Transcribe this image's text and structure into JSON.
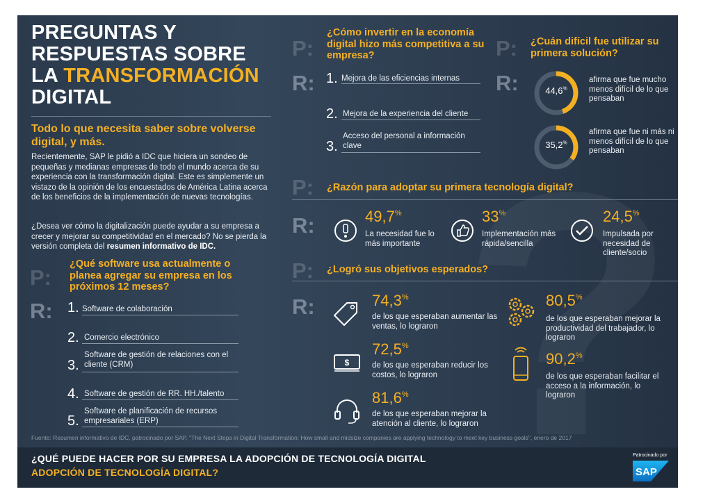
{
  "colors": {
    "accent": "#f4b023",
    "background": "#2f3f52",
    "footer": "#1e2a38",
    "sap_blue": "#1a8fd6"
  },
  "header": {
    "title_line1": "PREGUNTAS Y",
    "title_line2": "RESPUESTAS SOBRE",
    "title_line3a": "LA ",
    "title_line3b": "TRANSFORMACIÓN",
    "title_line4": "DIGITAL",
    "subtitle": "Todo lo que necesita saber sobre volverse digital, y más."
  },
  "intro": {
    "p1": "Recientemente, SAP le pidió a IDC que hiciera un sondeo de pequeñas y medianas empresas de todo el mundo acerca de su experiencia con la transformación digital. Este es simplemente un vistazo de la opinión de los encuestados de América Latina acerca de los beneficios de la implementación de nuevas tecnologías.",
    "p2_start": "¿Desea ver cómo la digitalización puede ayudar a su empresa a crecer y mejorar su competitividad en el mercado? No se pierda la versión completa del ",
    "p2_bold": "resumen informativo de IDC."
  },
  "markers": {
    "p": "P:",
    "r": "R:"
  },
  "q_software": {
    "question": "¿Qué software usa actualmente o planea agregar su empresa en los próximos 12 meses?",
    "items": [
      {
        "n": "1.",
        "text": "Software de colaboración"
      },
      {
        "n": "2.",
        "text": "Comercio electrónico"
      },
      {
        "n": "3.",
        "text": "Software de gestión de relaciones con el cliente (CRM)"
      },
      {
        "n": "4.",
        "text": "Software de gestión de RR. HH./talento"
      },
      {
        "n": "5.",
        "text": "Software de planificación de recursos empresariales (ERP)"
      }
    ]
  },
  "q_invest": {
    "question": "¿Cómo invertir en la economía digital hizo más competitiva a su empresa?",
    "items": [
      {
        "n": "1.",
        "text": "Mejora de las eficiencias internas"
      },
      {
        "n": "2.",
        "text": "Mejora de la experiencia del cliente"
      },
      {
        "n": "3.",
        "text": "Acceso del personal a información clave"
      }
    ]
  },
  "q_difficulty": {
    "question": "¿Cuán difícil fue utilizar su primera solución?",
    "items": [
      {
        "value": "44,6",
        "unit": "%",
        "fraction": 0.446,
        "text": "afirma que fue mucho menos difícil de lo que pensaban"
      },
      {
        "value": "35,2",
        "unit": "%",
        "fraction": 0.352,
        "text": "afirma que fue ni más ni menos difícil de lo que pensaban"
      }
    ]
  },
  "q_reason": {
    "question": "¿Razón para adoptar su primera tecnología digital?",
    "items": [
      {
        "value": "49,7",
        "unit": "%",
        "icon": "exclamation-icon",
        "text": "La necesidad fue lo más importante"
      },
      {
        "value": "33",
        "unit": "%",
        "icon": "thumbs-up-icon",
        "text": "Implementación más rápida/sencilla"
      },
      {
        "value": "24,5",
        "unit": "%",
        "icon": "checkmark-icon",
        "text": "Impulsada por necesidad de cliente/socio"
      }
    ]
  },
  "q_goals": {
    "question": "¿Logró sus objetivos esperados?",
    "items": [
      {
        "value": "74,3",
        "unit": "%",
        "icon": "price-tag-icon",
        "text": "de los que esperaban aumentar las ventas, lo lograron"
      },
      {
        "value": "72,5",
        "unit": "%",
        "icon": "money-icon",
        "text": "de los que esperaban reducir los costos, lo lograron"
      },
      {
        "value": "81,6",
        "unit": "%",
        "icon": "headset-icon",
        "text": "de los que esperaban mejorar la atención al cliente, lo lograron"
      },
      {
        "value": "80,5",
        "unit": "%",
        "icon": "gears-icon",
        "text": "de los que esperaban mejorar la productividad del trabajador, lo lograron"
      },
      {
        "value": "90,2",
        "unit": "%",
        "icon": "mobile-icon",
        "text": "de los que esperaban facilitar el acceso a la información, lo lograron"
      }
    ]
  },
  "source": "Fuente: Resumen informativo de IDC, patrocinado por SAP, \"The Next Steps in Digital Transformation: How small and midsize companies are applying technology to meet key business goals\", enero de 2017",
  "footer": {
    "line1": "¿QUÉ PUEDE HACER POR SU EMPRESA LA ADOPCIÓN DE TECNOLOGÍA DIGITAL",
    "line2": "ADOPCIÓN DE TECNOLOGÍA DIGITAL?",
    "sponsored": "Patrocinado por",
    "logo": "SAP"
  }
}
